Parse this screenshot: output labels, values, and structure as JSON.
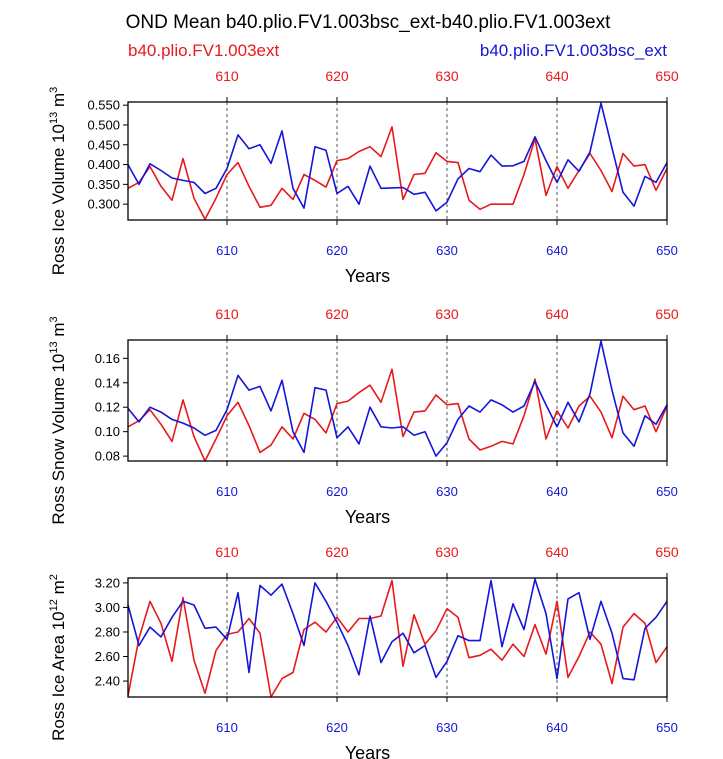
{
  "title": "OND Mean b40.plio.FV1.003bsc_ext-b40.plio.FV1.003ext",
  "legend": {
    "left": "b40.plio.FV1.003ext",
    "right": "b40.plio.FV1.003bsc_ext"
  },
  "colors": {
    "red": "#e8191b",
    "blue": "#1515d9",
    "axis": "#000000"
  },
  "chart_data": [
    {
      "type": "line",
      "ylabel": "Ross Ice Volume 10",
      "ylabel_sup": "13",
      "ylabel_unit": "m",
      "ylabel_unit_sup": "3",
      "xlabel": "Years",
      "xlim": [
        601,
        650
      ],
      "ylim": [
        0.26,
        0.558
      ],
      "yticks": [
        0.3,
        0.35,
        0.4,
        0.45,
        0.5,
        0.55
      ],
      "ytick_labels": [
        "0.300",
        "0.350",
        "0.400",
        "0.450",
        "0.500",
        "0.550"
      ],
      "xticks": [
        610,
        620,
        630,
        640,
        650
      ],
      "xtick_labels": [
        "610",
        "620",
        "630",
        "640",
        "650"
      ],
      "series": [
        {
          "name": "b40.plio.FV1.003ext",
          "color": "#e8191b",
          "x": [
            601,
            602,
            603,
            604,
            605,
            606,
            607,
            608,
            609,
            610,
            611,
            612,
            613,
            614,
            615,
            616,
            617,
            618,
            619,
            620,
            621,
            622,
            623,
            624,
            625,
            626,
            627,
            628,
            629,
            630,
            631,
            632,
            633,
            634,
            635,
            636,
            637,
            638,
            639,
            640,
            641,
            642,
            643,
            644,
            645,
            646,
            647,
            648,
            649,
            650
          ],
          "values": [
            0.34,
            0.355,
            0.395,
            0.345,
            0.31,
            0.415,
            0.315,
            0.262,
            0.315,
            0.375,
            0.405,
            0.345,
            0.292,
            0.297,
            0.34,
            0.312,
            0.375,
            0.36,
            0.343,
            0.41,
            0.415,
            0.433,
            0.445,
            0.42,
            0.495,
            0.312,
            0.375,
            0.378,
            0.43,
            0.408,
            0.405,
            0.31,
            0.287,
            0.3,
            0.3,
            0.3,
            0.375,
            0.465,
            0.322,
            0.395,
            0.34,
            0.385,
            0.428,
            0.385,
            0.332,
            0.428,
            0.396,
            0.4,
            0.335,
            0.39
          ]
        },
        {
          "name": "b40.plio.FV1.003bsc_ext",
          "color": "#1515d9",
          "x": [
            601,
            602,
            603,
            604,
            605,
            606,
            607,
            608,
            609,
            610,
            611,
            612,
            613,
            614,
            615,
            616,
            617,
            618,
            619,
            620,
            621,
            622,
            623,
            624,
            625,
            626,
            627,
            628,
            629,
            630,
            631,
            632,
            633,
            634,
            635,
            636,
            637,
            638,
            639,
            640,
            641,
            642,
            643,
            644,
            645,
            646,
            647,
            648,
            649,
            650
          ],
          "values": [
            0.4,
            0.35,
            0.402,
            0.385,
            0.366,
            0.36,
            0.355,
            0.327,
            0.34,
            0.39,
            0.475,
            0.44,
            0.45,
            0.403,
            0.485,
            0.34,
            0.29,
            0.445,
            0.436,
            0.327,
            0.345,
            0.3,
            0.396,
            0.34,
            0.341,
            0.342,
            0.325,
            0.33,
            0.283,
            0.305,
            0.364,
            0.39,
            0.382,
            0.424,
            0.396,
            0.397,
            0.408,
            0.47,
            0.41,
            0.355,
            0.412,
            0.383,
            0.432,
            0.555,
            0.442,
            0.33,
            0.295,
            0.37,
            0.355,
            0.405
          ]
        }
      ]
    },
    {
      "type": "line",
      "ylabel": "Ross Snow Volume 10",
      "ylabel_sup": "13",
      "ylabel_unit": "m",
      "ylabel_unit_sup": "3",
      "xlabel": "Years",
      "xlim": [
        601,
        650
      ],
      "ylim": [
        0.076,
        0.175
      ],
      "yticks": [
        0.08,
        0.1,
        0.12,
        0.14,
        0.16
      ],
      "ytick_labels": [
        "0.08",
        "0.10",
        "0.12",
        "0.14",
        "0.16"
      ],
      "xticks": [
        610,
        620,
        630,
        640,
        650
      ],
      "xtick_labels": [
        "610",
        "620",
        "630",
        "640",
        "650"
      ],
      "series": [
        {
          "name": "b40.plio.FV1.003ext",
          "color": "#e8191b",
          "x": [
            601,
            602,
            603,
            604,
            605,
            606,
            607,
            608,
            609,
            610,
            611,
            612,
            613,
            614,
            615,
            616,
            617,
            618,
            619,
            620,
            621,
            622,
            623,
            624,
            625,
            626,
            627,
            628,
            629,
            630,
            631,
            632,
            633,
            634,
            635,
            636,
            637,
            638,
            639,
            640,
            641,
            642,
            643,
            644,
            645,
            646,
            647,
            648,
            649,
            650
          ],
          "values": [
            0.104,
            0.109,
            0.118,
            0.106,
            0.092,
            0.126,
            0.096,
            0.076,
            0.094,
            0.113,
            0.124,
            0.105,
            0.083,
            0.089,
            0.104,
            0.094,
            0.115,
            0.11,
            0.099,
            0.123,
            0.125,
            0.132,
            0.138,
            0.124,
            0.151,
            0.096,
            0.116,
            0.117,
            0.13,
            0.122,
            0.123,
            0.094,
            0.085,
            0.088,
            0.092,
            0.09,
            0.113,
            0.143,
            0.094,
            0.117,
            0.103,
            0.121,
            0.129,
            0.116,
            0.095,
            0.129,
            0.118,
            0.121,
            0.1,
            0.121
          ]
        },
        {
          "name": "b40.plio.FV1.003bsc_ext",
          "color": "#1515d9",
          "x": [
            601,
            602,
            603,
            604,
            605,
            606,
            607,
            608,
            609,
            610,
            611,
            612,
            613,
            614,
            615,
            616,
            617,
            618,
            619,
            620,
            621,
            622,
            623,
            624,
            625,
            626,
            627,
            628,
            629,
            630,
            631,
            632,
            633,
            634,
            635,
            636,
            637,
            638,
            639,
            640,
            641,
            642,
            643,
            644,
            645,
            646,
            647,
            648,
            649,
            650
          ],
          "values": [
            0.119,
            0.108,
            0.12,
            0.116,
            0.11,
            0.107,
            0.103,
            0.097,
            0.101,
            0.118,
            0.146,
            0.134,
            0.137,
            0.117,
            0.142,
            0.1,
            0.083,
            0.136,
            0.134,
            0.095,
            0.104,
            0.09,
            0.12,
            0.104,
            0.103,
            0.104,
            0.097,
            0.1,
            0.08,
            0.091,
            0.11,
            0.121,
            0.116,
            0.126,
            0.122,
            0.116,
            0.121,
            0.141,
            0.122,
            0.104,
            0.124,
            0.108,
            0.131,
            0.174,
            0.134,
            0.099,
            0.088,
            0.113,
            0.106,
            0.122
          ]
        }
      ]
    },
    {
      "type": "line",
      "ylabel": "Ross Ice Area 10",
      "ylabel_sup": "12",
      "ylabel_unit": "m",
      "ylabel_unit_sup": "2",
      "xlabel": "Years",
      "xlim": [
        601,
        650
      ],
      "ylim": [
        2.27,
        3.24
      ],
      "yticks": [
        2.4,
        2.6,
        2.8,
        3.0,
        3.2
      ],
      "ytick_labels": [
        "2.40",
        "2.60",
        "2.80",
        "3.00",
        "3.20"
      ],
      "xticks": [
        610,
        620,
        630,
        640,
        650
      ],
      "xtick_labels": [
        "610",
        "620",
        "630",
        "640",
        "650"
      ],
      "series": [
        {
          "name": "b40.plio.FV1.003ext",
          "color": "#e8191b",
          "x": [
            601,
            602,
            603,
            604,
            605,
            606,
            607,
            608,
            609,
            610,
            611,
            612,
            613,
            614,
            615,
            616,
            617,
            618,
            619,
            620,
            621,
            622,
            623,
            624,
            625,
            626,
            627,
            628,
            629,
            630,
            631,
            632,
            633,
            634,
            635,
            636,
            637,
            638,
            639,
            640,
            641,
            642,
            643,
            644,
            645,
            646,
            647,
            648,
            649,
            650
          ],
          "values": [
            2.28,
            2.75,
            3.05,
            2.87,
            2.56,
            3.08,
            2.57,
            2.3,
            2.65,
            2.78,
            2.8,
            2.91,
            2.79,
            2.27,
            2.42,
            2.47,
            2.82,
            2.88,
            2.8,
            2.92,
            2.8,
            2.91,
            2.91,
            2.93,
            3.22,
            2.52,
            2.94,
            2.7,
            2.81,
            2.99,
            2.92,
            2.59,
            2.61,
            2.66,
            2.57,
            2.7,
            2.6,
            2.86,
            2.62,
            3.05,
            2.43,
            2.6,
            2.8,
            2.7,
            2.38,
            2.84,
            2.95,
            2.87,
            2.55,
            2.68
          ]
        },
        {
          "name": "b40.plio.FV1.003bsc_ext",
          "color": "#1515d9",
          "x": [
            601,
            602,
            603,
            604,
            605,
            606,
            607,
            608,
            609,
            610,
            611,
            612,
            613,
            614,
            615,
            616,
            617,
            618,
            619,
            620,
            621,
            622,
            623,
            624,
            625,
            626,
            627,
            628,
            629,
            630,
            631,
            632,
            633,
            634,
            635,
            636,
            637,
            638,
            639,
            640,
            641,
            642,
            643,
            644,
            645,
            646,
            647,
            648,
            649,
            650
          ],
          "values": [
            3.02,
            2.69,
            2.84,
            2.76,
            2.92,
            3.05,
            3.02,
            2.83,
            2.84,
            2.74,
            3.12,
            2.47,
            3.18,
            3.1,
            3.19,
            2.95,
            2.69,
            3.2,
            3.05,
            2.88,
            2.69,
            2.45,
            2.93,
            2.55,
            2.72,
            2.79,
            2.63,
            2.69,
            2.43,
            2.56,
            2.77,
            2.73,
            2.73,
            3.22,
            2.68,
            3.03,
            2.82,
            3.23,
            2.95,
            2.42,
            3.07,
            3.12,
            2.74,
            3.05,
            2.79,
            2.42,
            2.41,
            2.83,
            2.92,
            3.05
          ]
        }
      ]
    }
  ]
}
